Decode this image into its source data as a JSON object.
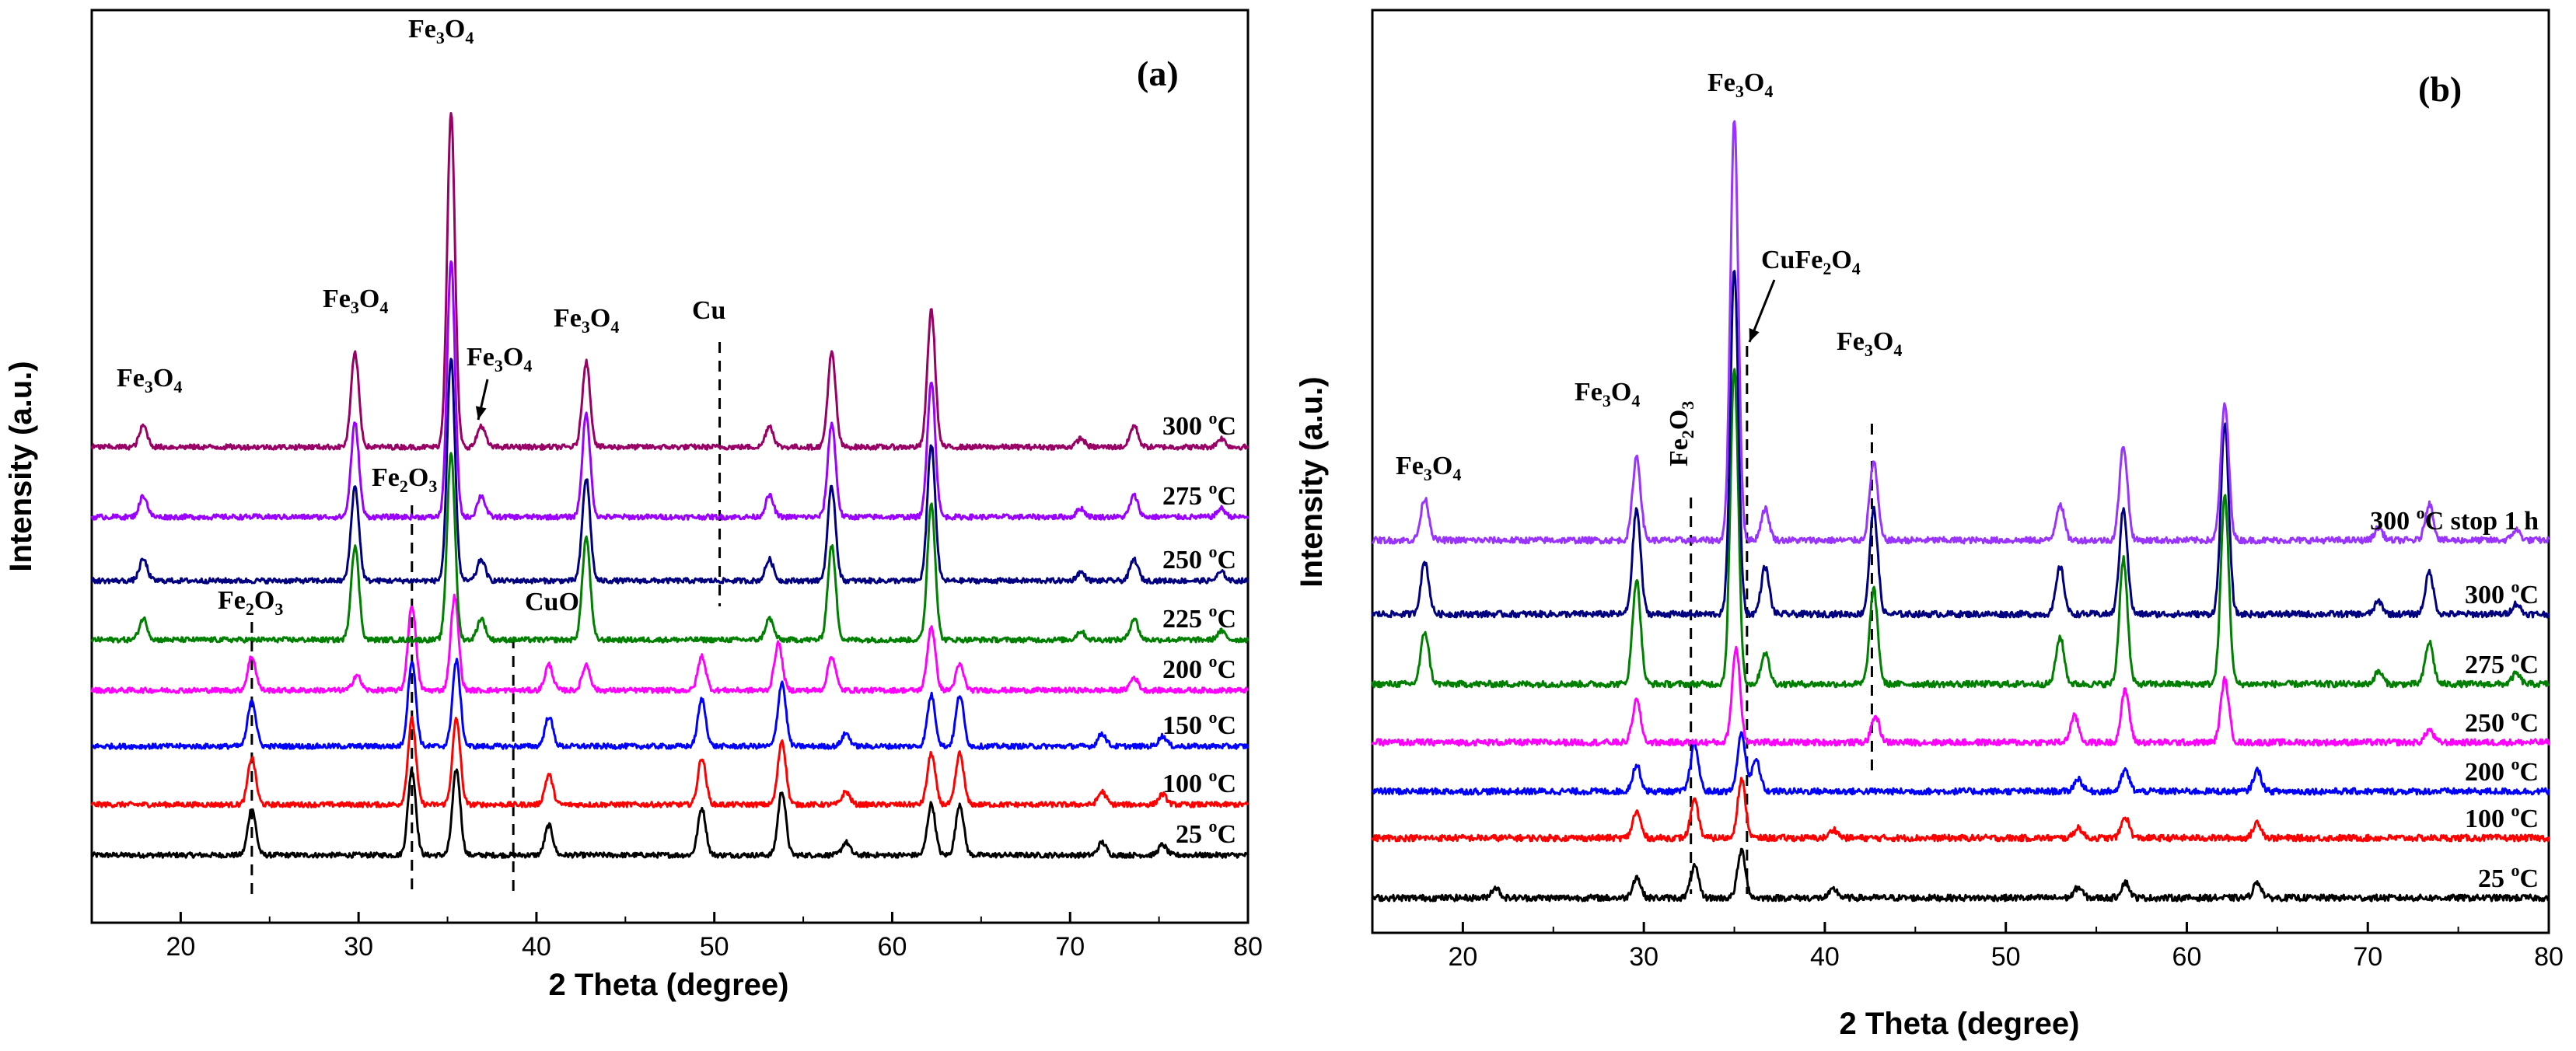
{
  "chart_data": [
    {
      "panel": "(a)",
      "type": "line",
      "title": "(a)",
      "xlabel": "2 Theta (degree)",
      "ylabel": "Intensity (a.u.)",
      "xlim": [
        15,
        80
      ],
      "xticks": [
        20,
        30,
        40,
        50,
        60,
        70,
        80
      ],
      "series": [
        {
          "name": "25 °C",
          "temp": "25",
          "color": "#000000",
          "peaks": [
            [
              24.0,
              0.55
            ],
            [
              33.0,
              1.0
            ],
            [
              35.5,
              1.0
            ],
            [
              40.7,
              0.35
            ],
            [
              49.3,
              0.55
            ],
            [
              53.8,
              0.75
            ],
            [
              57.4,
              0.15
            ],
            [
              62.2,
              0.6
            ],
            [
              63.8,
              0.6
            ],
            [
              71.8,
              0.15
            ],
            [
              75.2,
              0.12
            ]
          ]
        },
        {
          "name": "100 °C",
          "temp": "100",
          "color": "#ff0000",
          "peaks": [
            [
              24.0,
              0.55
            ],
            [
              33.0,
              1.0
            ],
            [
              35.5,
              1.0
            ],
            [
              40.7,
              0.35
            ],
            [
              49.3,
              0.55
            ],
            [
              53.8,
              0.75
            ],
            [
              57.4,
              0.15
            ],
            [
              62.2,
              0.6
            ],
            [
              63.8,
              0.6
            ],
            [
              71.8,
              0.15
            ],
            [
              75.2,
              0.12
            ]
          ]
        },
        {
          "name": "150 °C",
          "temp": "150",
          "color": "#0000ff",
          "peaks": [
            [
              24.0,
              0.55
            ],
            [
              33.0,
              1.0
            ],
            [
              35.5,
              1.0
            ],
            [
              40.7,
              0.35
            ],
            [
              49.3,
              0.55
            ],
            [
              53.8,
              0.75
            ],
            [
              57.4,
              0.15
            ],
            [
              62.2,
              0.6
            ],
            [
              63.8,
              0.6
            ],
            [
              71.8,
              0.15
            ],
            [
              75.2,
              0.12
            ]
          ]
        },
        {
          "name": "200 °C",
          "temp": "200",
          "color": "#ff00ff",
          "peaks": [
            [
              24.0,
              0.4
            ],
            [
              29.9,
              0.18
            ],
            [
              33.0,
              1.0
            ],
            [
              35.4,
              1.1
            ],
            [
              40.7,
              0.3
            ],
            [
              42.8,
              0.3
            ],
            [
              49.3,
              0.4
            ],
            [
              53.6,
              0.55
            ],
            [
              56.6,
              0.4
            ],
            [
              62.2,
              0.75
            ],
            [
              63.8,
              0.3
            ],
            [
              73.6,
              0.15
            ]
          ]
        },
        {
          "name": "225 °C",
          "temp": "225",
          "color": "#008000",
          "peaks": [
            [
              17.9,
              0.25
            ],
            [
              29.8,
              1.1
            ],
            [
              35.2,
              2.2
            ],
            [
              36.9,
              0.25
            ],
            [
              42.8,
              1.2
            ],
            [
              53.1,
              0.25
            ],
            [
              56.6,
              1.1
            ],
            [
              62.2,
              1.6
            ],
            [
              70.6,
              0.1
            ],
            [
              73.6,
              0.25
            ],
            [
              78.5,
              0.1
            ]
          ]
        },
        {
          "name": "250 °C",
          "temp": "250",
          "color": "#000080",
          "peaks": [
            [
              17.9,
              0.25
            ],
            [
              29.8,
              1.1
            ],
            [
              35.2,
              2.6
            ],
            [
              36.9,
              0.25
            ],
            [
              42.8,
              1.2
            ],
            [
              53.1,
              0.25
            ],
            [
              56.6,
              1.1
            ],
            [
              62.2,
              1.6
            ],
            [
              70.6,
              0.1
            ],
            [
              73.6,
              0.25
            ],
            [
              78.5,
              0.1
            ]
          ]
        },
        {
          "name": "275 °C",
          "temp": "275",
          "color": "#9900ff",
          "peaks": [
            [
              17.9,
              0.25
            ],
            [
              29.8,
              1.1
            ],
            [
              35.2,
              3.0
            ],
            [
              36.9,
              0.25
            ],
            [
              42.8,
              1.2
            ],
            [
              53.1,
              0.25
            ],
            [
              56.6,
              1.1
            ],
            [
              62.2,
              1.6
            ],
            [
              70.6,
              0.1
            ],
            [
              73.6,
              0.25
            ],
            [
              78.5,
              0.1
            ]
          ]
        },
        {
          "name": "300 °C",
          "temp": "300",
          "color": "#990066",
          "peaks": [
            [
              17.9,
              0.25
            ],
            [
              29.8,
              1.1
            ],
            [
              35.2,
              3.9
            ],
            [
              36.9,
              0.25
            ],
            [
              42.8,
              1.0
            ],
            [
              53.1,
              0.25
            ],
            [
              56.6,
              1.1
            ],
            [
              62.2,
              1.6
            ],
            [
              70.6,
              0.1
            ],
            [
              73.6,
              0.25
            ],
            [
              78.5,
              0.1
            ]
          ]
        }
      ],
      "dashed_lines": [
        24.0,
        33.0,
        38.7,
        50.3
      ],
      "annotations": [
        {
          "text": "Fe3O4",
          "main": "Fe",
          "sub1": "3",
          "mid": "O",
          "sub2": "4",
          "x": 18.3
        },
        {
          "text": "Fe3O4",
          "main": "Fe",
          "sub1": "3",
          "mid": "O",
          "sub2": "4",
          "x": 30.0
        },
        {
          "text": "Fe3O4",
          "main": "Fe",
          "sub1": "3",
          "mid": "O",
          "sub2": "4",
          "x": 35.2
        },
        {
          "text": "Fe3O4",
          "main": "Fe",
          "sub1": "3",
          "mid": "O",
          "sub2": "4",
          "x": 37.5
        },
        {
          "text": "Fe3O4",
          "main": "Fe",
          "sub1": "3",
          "mid": "O",
          "sub2": "4",
          "x": 42.8
        },
        {
          "text": "Fe2O3",
          "main": "Fe",
          "sub1": "2",
          "mid": "O",
          "sub2": "3",
          "x": 33.4
        },
        {
          "text": "Fe2O3",
          "main": "Fe",
          "sub1": "2",
          "mid": "O",
          "sub2": "3",
          "x": 24.0
        },
        {
          "text": "Cu",
          "x": 50.0
        },
        {
          "text": "CuO",
          "x": 40.0
        }
      ]
    },
    {
      "panel": "(b)",
      "type": "line",
      "title": "(b)",
      "xlabel": "2 Theta (degree)",
      "ylabel": "Intensity (a.u.)",
      "xlim": [
        15,
        80
      ],
      "xticks": [
        20,
        30,
        40,
        50,
        60,
        70,
        80
      ],
      "series": [
        {
          "name": "25 °C",
          "temp": "25",
          "color": "#000000",
          "peaks": [
            [
              21.8,
              0.1
            ],
            [
              29.6,
              0.2
            ],
            [
              32.8,
              0.3
            ],
            [
              35.4,
              0.45
            ],
            [
              40.5,
              0.08
            ],
            [
              54.0,
              0.1
            ],
            [
              56.6,
              0.15
            ],
            [
              63.9,
              0.15
            ]
          ]
        },
        {
          "name": "100 °C",
          "temp": "100",
          "color": "#ff0000",
          "peaks": [
            [
              29.6,
              0.25
            ],
            [
              32.8,
              0.35
            ],
            [
              35.4,
              0.55
            ],
            [
              40.5,
              0.08
            ],
            [
              54.0,
              0.1
            ],
            [
              56.6,
              0.2
            ],
            [
              63.9,
              0.15
            ]
          ]
        },
        {
          "name": "200 °C",
          "temp": "200",
          "color": "#0000ff",
          "peaks": [
            [
              29.6,
              0.25
            ],
            [
              32.8,
              0.45
            ],
            [
              35.4,
              0.55
            ],
            [
              36.2,
              0.3
            ],
            [
              54.0,
              0.12
            ],
            [
              56.6,
              0.2
            ],
            [
              63.9,
              0.2
            ]
          ]
        },
        {
          "name": "250 °C",
          "temp": "250",
          "color": "#ff00ff",
          "peaks": [
            [
              29.6,
              0.4
            ],
            [
              35.1,
              0.9
            ],
            [
              42.8,
              0.25
            ],
            [
              53.8,
              0.25
            ],
            [
              56.6,
              0.5
            ],
            [
              62.1,
              0.6
            ],
            [
              73.4,
              0.12
            ]
          ]
        },
        {
          "name": "275°C",
          "temp": "275",
          "color": "#008000",
          "peaks": [
            [
              17.9,
              0.5
            ],
            [
              29.6,
              1.0
            ],
            [
              35.0,
              3.0
            ],
            [
              36.7,
              0.3
            ],
            [
              42.7,
              0.9
            ],
            [
              53.0,
              0.45
            ],
            [
              56.5,
              1.2
            ],
            [
              62.1,
              1.8
            ],
            [
              70.6,
              0.12
            ],
            [
              73.4,
              0.4
            ],
            [
              78.2,
              0.1
            ]
          ]
        },
        {
          "name": "300 °C",
          "temp": "300",
          "color": "#000080",
          "peaks": [
            [
              17.9,
              0.5
            ],
            [
              29.6,
              1.0
            ],
            [
              35.0,
              3.3
            ],
            [
              36.7,
              0.45
            ],
            [
              42.7,
              1.0
            ],
            [
              53.0,
              0.45
            ],
            [
              56.5,
              1.0
            ],
            [
              62.1,
              1.8
            ],
            [
              70.6,
              0.12
            ],
            [
              73.4,
              0.4
            ],
            [
              78.2,
              0.1
            ]
          ]
        },
        {
          "name": "300 °C stop 1 h",
          "temp": "300",
          "suffix": "stop 1 h",
          "color": "#9933ff",
          "peaks": [
            [
              17.9,
              0.4
            ],
            [
              29.6,
              0.8
            ],
            [
              35.0,
              4.0
            ],
            [
              36.7,
              0.3
            ],
            [
              42.7,
              0.75
            ],
            [
              53.0,
              0.35
            ],
            [
              56.5,
              0.9
            ],
            [
              62.1,
              1.3
            ],
            [
              70.6,
              0.12
            ],
            [
              73.4,
              0.35
            ],
            [
              78.2,
              0.1
            ]
          ]
        }
      ],
      "dashed_lines": [
        32.6,
        35.7,
        42.6
      ],
      "annotations": [
        {
          "text": "Fe3O4",
          "main": "Fe",
          "sub1": "3",
          "mid": "O",
          "sub2": "4",
          "x": 18.0
        },
        {
          "text": "Fe3O4",
          "main": "Fe",
          "sub1": "3",
          "mid": "O",
          "sub2": "4",
          "x": 29.6
        },
        {
          "text": "Fe3O4",
          "main": "Fe",
          "sub1": "3",
          "mid": "O",
          "sub2": "4",
          "x": 35.0
        },
        {
          "text": "Fe3O4",
          "main": "Fe",
          "sub1": "3",
          "mid": "O",
          "sub2": "4",
          "x": 42.6
        },
        {
          "text": "Fe2O3",
          "main": "Fe",
          "sub1": "2",
          "mid": "O",
          "sub2": "3",
          "x": 32.6
        },
        {
          "text": "CuFe2O4",
          "main": "CuFe",
          "sub1": "2",
          "mid": "O",
          "sub2": "4",
          "x": 36.0
        }
      ]
    }
  ]
}
